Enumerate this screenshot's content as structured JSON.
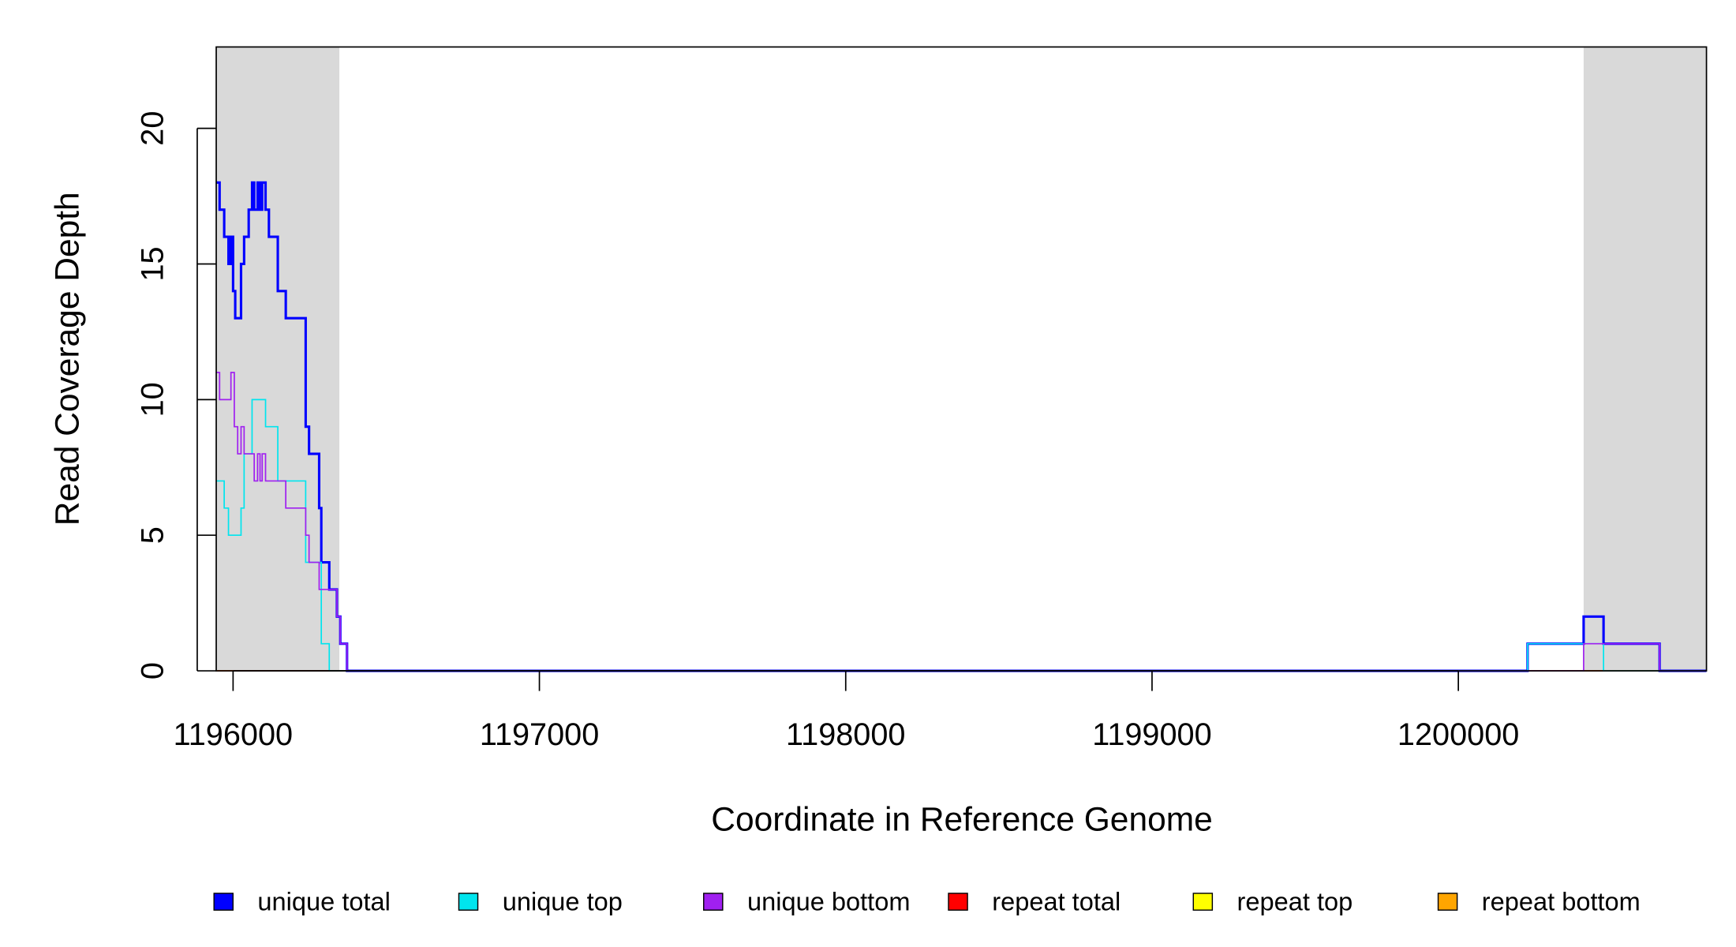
{
  "chart_data": {
    "type": "step",
    "xlabel": "Coordinate in Reference Genome",
    "ylabel": "Read Coverage Depth",
    "xlim": [
      1195945,
      1200810
    ],
    "ylim": [
      0,
      23
    ],
    "xticks": [
      1196000,
      1197000,
      1198000,
      1199000,
      1200000
    ],
    "yticks": [
      0,
      5,
      10,
      15,
      20
    ],
    "shaded_regions": [
      [
        1195945,
        1196347
      ],
      [
        1200409,
        1200810
      ]
    ],
    "shade_color": "#d9d9d9",
    "x": [
      1195945,
      1195956,
      1195971,
      1195985,
      1195993,
      1196000,
      1196004,
      1196007,
      1196015,
      1196026,
      1196036,
      1196051,
      1196062,
      1196069,
      1196080,
      1196088,
      1196095,
      1196106,
      1196117,
      1196146,
      1196172,
      1196237,
      1196248,
      1196281,
      1196288,
      1196314,
      1196339,
      1196350,
      1196372,
      1200226,
      1200409,
      1200474,
      1200657,
      1200810
    ],
    "series": [
      {
        "name": "unique total",
        "color": "#0000ff",
        "width": 2.2,
        "values": [
          18,
          17,
          16,
          15,
          16,
          14,
          14,
          13,
          13,
          15,
          16,
          17,
          18,
          17,
          18,
          17,
          18,
          17,
          16,
          14,
          13,
          9,
          8,
          6,
          4,
          3,
          2,
          1,
          0,
          1,
          2,
          1,
          0,
          0
        ]
      },
      {
        "name": "unique top",
        "color": "#00e5ee",
        "width": 1.2,
        "values": [
          7,
          7,
          6,
          5,
          5,
          5,
          5,
          5,
          5,
          6,
          8,
          8,
          10,
          10,
          10,
          10,
          10,
          9,
          9,
          7,
          7,
          4,
          4,
          4,
          1,
          0,
          0,
          0,
          0,
          1,
          1,
          0,
          0,
          0
        ]
      },
      {
        "name": "unique bottom",
        "color": "#a020f0",
        "width": 1.2,
        "values": [
          11,
          10,
          10,
          10,
          11,
          11,
          9,
          9,
          8,
          9,
          8,
          8,
          8,
          7,
          8,
          7,
          8,
          7,
          7,
          7,
          6,
          5,
          4,
          3,
          3,
          3,
          2,
          1,
          0,
          0,
          1,
          1,
          0,
          0
        ]
      },
      {
        "name": "repeat total",
        "color": "#ff0000",
        "width": 1.2,
        "values": [
          0,
          0,
          0,
          0,
          0,
          0,
          0,
          0,
          0,
          0,
          0,
          0,
          0,
          0,
          0,
          0,
          0,
          0,
          0,
          0,
          0,
          0,
          0,
          0,
          0,
          0,
          0,
          0,
          0,
          0,
          0,
          0,
          0,
          0
        ]
      },
      {
        "name": "repeat top",
        "color": "#ffff00",
        "width": 1.2,
        "values": [
          0,
          0,
          0,
          0,
          0,
          0,
          0,
          0,
          0,
          0,
          0,
          0,
          0,
          0,
          0,
          0,
          0,
          0,
          0,
          0,
          0,
          0,
          0,
          0,
          0,
          0,
          0,
          0,
          0,
          0,
          0,
          0,
          0,
          0
        ]
      },
      {
        "name": "repeat bottom",
        "color": "#ffa500",
        "width": 1.2,
        "values": [
          0,
          0,
          0,
          0,
          0,
          0,
          0,
          0,
          0,
          0,
          0,
          0,
          0,
          0,
          0,
          0,
          0,
          0,
          0,
          0,
          0,
          0,
          0,
          0,
          0,
          0,
          0,
          0,
          0,
          0,
          0,
          0,
          0,
          0
        ]
      }
    ]
  }
}
